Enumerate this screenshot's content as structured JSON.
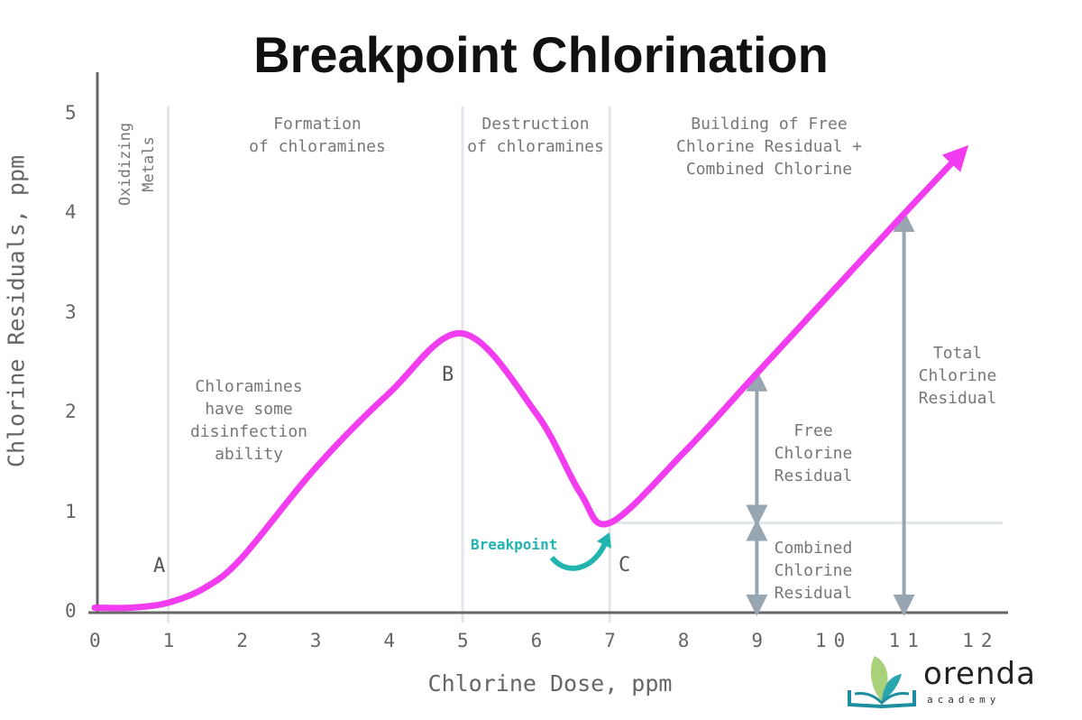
{
  "chart_data": {
    "type": "line",
    "title": "Breakpoint Chlorination",
    "xlabel": "Chlorine Dose, ppm",
    "ylabel": "Chlorine Residuals, ppm",
    "xlim": [
      0,
      12
    ],
    "ylim": [
      0,
      5
    ],
    "x_ticks": [
      "0",
      "1",
      "2",
      "3",
      "4",
      "5",
      "6",
      "7",
      "8",
      "9",
      "10",
      "11",
      "12"
    ],
    "y_ticks": [
      "0",
      "1",
      "2",
      "3",
      "4",
      "5"
    ],
    "grid": false,
    "series": [
      {
        "color": "#f23cf0",
        "x": [
          0,
          0.5,
          1,
          1.5,
          2,
          3,
          4,
          5,
          6,
          6.6,
          7,
          8,
          9,
          10,
          11,
          11.7
        ],
        "y": [
          0.05,
          0.05,
          0.1,
          0.25,
          0.55,
          1.45,
          2.2,
          2.8,
          2.0,
          1.2,
          0.9,
          1.6,
          2.4,
          3.2,
          4.0,
          4.55
        ]
      }
    ],
    "region_dividers_x": [
      1,
      5,
      7
    ],
    "breakpoint_level": 0.9,
    "points": [
      {
        "label": "A",
        "x": 1,
        "y": 0.1
      },
      {
        "label": "B",
        "x": 5,
        "y": 2.8
      },
      {
        "label": "C",
        "x": 7,
        "y": 0.9
      }
    ],
    "regions": [
      {
        "label": "Oxidizing\nMetals"
      },
      {
        "label": "Formation\nof chloramines"
      },
      {
        "label": "Destruction\nof chloramines"
      },
      {
        "label": "Building of Free\nChlorine Residual +\nCombined Chlorine"
      }
    ],
    "annotations": {
      "chloramines_note": "Chloramines\nhave some\ndisinfection\nability",
      "breakpoint": "Breakpoint",
      "free": "Free\nChlorine\nResidual",
      "combined": "Combined\nChlorine\nResidual",
      "total": "Total\nChlorine\nResidual"
    },
    "colors": {
      "curve": "#f23cf0",
      "breakpoint": "#22b5b0",
      "arrows": "#98a6b2",
      "dividers": "#e2e6ea"
    }
  },
  "logo": {
    "name": "orenda",
    "sub": "academy"
  }
}
